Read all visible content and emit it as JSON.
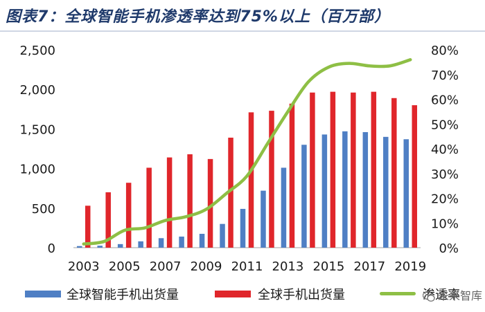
{
  "header": {
    "title": "图表7：全球智能手机渗透率达到75%以上（百万部）"
  },
  "watermark": {
    "text": "未来智库",
    "icon": "wechat-icon"
  },
  "chart_data": {
    "type": "bar",
    "title": "图表7：全球智能手机渗透率达到75%以上（百万部）",
    "categories": [
      "2003",
      "2004",
      "2005",
      "2006",
      "2007",
      "2008",
      "2009",
      "2010",
      "2011",
      "2012",
      "2013",
      "2014",
      "2015",
      "2016",
      "2017",
      "2018",
      "2019"
    ],
    "x_tick_labels": [
      "2003",
      "2005",
      "2007",
      "2009",
      "2011",
      "2013",
      "2015",
      "2017",
      "2019"
    ],
    "y_left": {
      "min": 0,
      "max": 2500,
      "ticks": [
        "0",
        "500",
        "1,000",
        "1,500",
        "2,000",
        "2,500"
      ]
    },
    "y_right": {
      "min": 0,
      "max": 80,
      "ticks": [
        "0%",
        "10%",
        "20%",
        "30%",
        "40%",
        "50%",
        "60%",
        "70%",
        "80%"
      ]
    },
    "grid": false,
    "legend_position": "bottom",
    "series": [
      {
        "name": "全球智能手机出货量",
        "type": "bar",
        "axis": "left",
        "color": "#4f7fc4",
        "values": [
          20,
          25,
          45,
          80,
          120,
          140,
          175,
          300,
          490,
          720,
          1010,
          1300,
          1430,
          1470,
          1460,
          1400,
          1370
        ]
      },
      {
        "name": "全球手机出货量",
        "type": "bar",
        "axis": "left",
        "color": "#e0262b",
        "values": [
          530,
          700,
          820,
          1010,
          1140,
          1180,
          1120,
          1390,
          1710,
          1730,
          1820,
          1960,
          1970,
          1960,
          1970,
          1890,
          1800
        ]
      },
      {
        "name": "渗透率",
        "type": "line",
        "axis": "right",
        "color": "#8ebf45",
        "values": [
          1.5,
          2.5,
          7,
          8,
          11,
          12.5,
          15.5,
          22,
          29,
          42,
          55,
          67,
          73,
          74.5,
          73.5,
          73.5,
          76
        ]
      }
    ]
  }
}
